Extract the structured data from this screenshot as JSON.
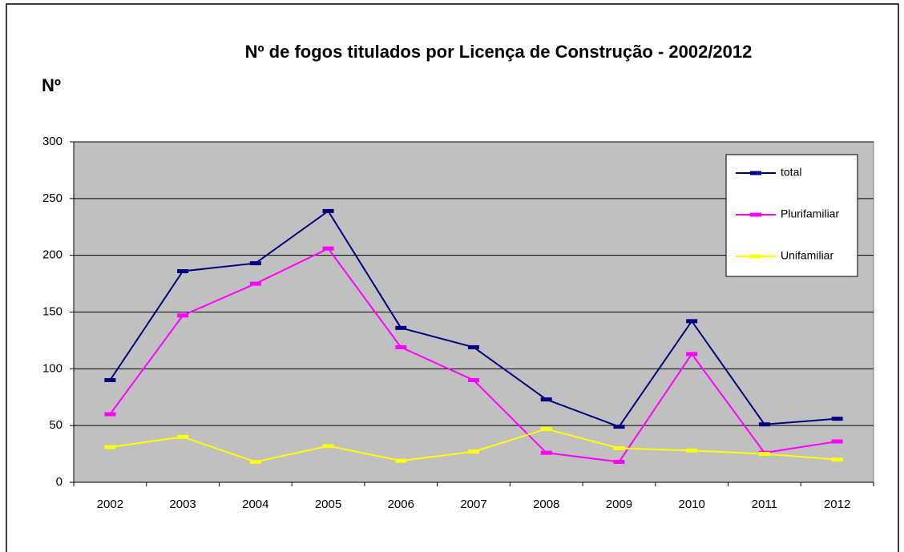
{
  "chart_data": {
    "type": "line",
    "title": "Nº de fogos titulados por Licença de Construção - 2002/2012",
    "y_label": "Nº",
    "categories": [
      "2002",
      "2003",
      "2004",
      "2005",
      "2006",
      "2007",
      "2008",
      "2009",
      "2010",
      "2011",
      "2012"
    ],
    "series": [
      {
        "name": "total",
        "color": "#000080",
        "values": [
          90,
          186,
          193,
          239,
          136,
          119,
          73,
          49,
          142,
          51,
          56
        ]
      },
      {
        "name": "Plurifamiliar",
        "color": "#ff00ff",
        "values": [
          60,
          147,
          175,
          206,
          119,
          90,
          26,
          18,
          113,
          26,
          36
        ]
      },
      {
        "name": "Unifamiliar",
        "color": "#ffff00",
        "values": [
          31,
          40,
          18,
          32,
          19,
          27,
          47,
          30,
          28,
          25,
          20
        ]
      }
    ],
    "ylim": [
      0,
      300
    ],
    "yticks": [
      0,
      50,
      100,
      150,
      200,
      250,
      300
    ],
    "grid": true,
    "legend": "top-right"
  }
}
